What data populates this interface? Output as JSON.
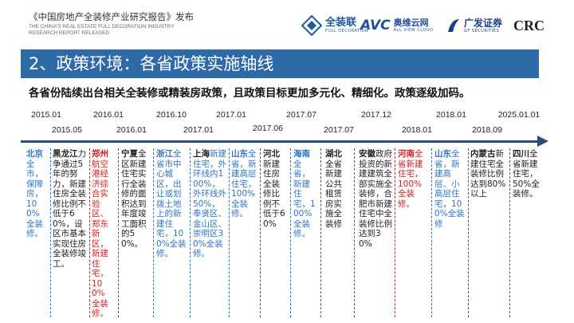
{
  "header": {
    "title": "《中国房地产全装修产业研究报告》发布",
    "subtitle_line1": "THE CHINA'S REAL ESTATE FULL DECORATION INDUSTRY",
    "subtitle_line2": "RESEARCH REPORT RELEASED",
    "logos": [
      {
        "name": "全装联",
        "small": "FULL DECORATION",
        "color": "#1e5aa0"
      },
      {
        "name": "AVC",
        "extra": "奥维云网",
        "small": "ALL VIEW CLOUD",
        "color": "#1e4f9c"
      },
      {
        "name": "广发证券",
        "small": "GF SECURITIES",
        "color": "#1a3e8c"
      },
      {
        "name": "CRC",
        "color": "#222222"
      }
    ]
  },
  "section_title": "2、政策环境：各省政策实施轴线",
  "summary": "各省份陆续出台相关全装修或精装房政策，且政策目标更加多元化、精细化。政策逐级加码。",
  "dates_top": [
    "2015.01",
    "2016.01",
    "2016.10",
    "2017.01",
    "2017.07",
    "2017.12",
    "2018.01",
    "2025.01.01"
  ],
  "dates_bottom": [
    "2015.05",
    "2016.01",
    "2017.01",
    "2017.06",
    "2017.07",
    "2018.01",
    "2018.09"
  ],
  "columns": [
    {
      "province": "北京",
      "text": "全市，保障房，100%全装修。",
      "color": "#2e75c0"
    },
    {
      "province": "黑龙江",
      "text": "力争通过5年的努力，新建住房全装修比例不低于60%，设区市基本实现住房全装修竣工。",
      "color": "#222222"
    },
    {
      "province": "郑州",
      "text": "航空港经济综合实验区、郑东新区，新建住宅，100%全装修。",
      "color": "#d42020"
    },
    {
      "province": "宁夏",
      "text": "全区新建住宅实行全装修的面积达到年度竣工面积的50%。",
      "color": "#222222"
    },
    {
      "province": "浙江",
      "text": "全省市中心城区，出让或划拨土地上的新建住宅，100%全装修。",
      "color": "#2e75c0"
    },
    {
      "province": "上海",
      "text": "新建住宅，外环线内100%，外环线外50%，奉贤区、金山区、崇明区30%全装修。",
      "color": "#2e75c0"
    },
    {
      "province": "山东",
      "text": "全省，新建高层住宅，100%全装修。",
      "color": "#2e75c0"
    },
    {
      "province": "河北",
      "text": "新建住房全装修比例不低于60%",
      "color": "#222222"
    },
    {
      "province": "海南",
      "text": "全省，新建住宅，100%全装修。",
      "color": "#2e75c0"
    },
    {
      "province": "湖北",
      "text": "全省新建公共租赁房实施全装修",
      "color": "#222222"
    },
    {
      "province": "安徽",
      "text": "政府投资的新建建筑全部实施全装修，合肥市新建住宅中全装修比例达到30%",
      "color": "#222222"
    },
    {
      "province": "河南",
      "text": "全省新建住宅，100%全装修。",
      "color": "#d42020"
    },
    {
      "province": "山东",
      "text": "全省，新建高层、小高层住宅，100%全装修",
      "color": "#2e75c0"
    },
    {
      "province": "内蒙古",
      "text": "新建住宅全装修比例达到80%以上",
      "color": "#222222"
    },
    {
      "province": "四川",
      "text": "全省新建住宅，50%全装修。",
      "color": "#222222"
    }
  ]
}
